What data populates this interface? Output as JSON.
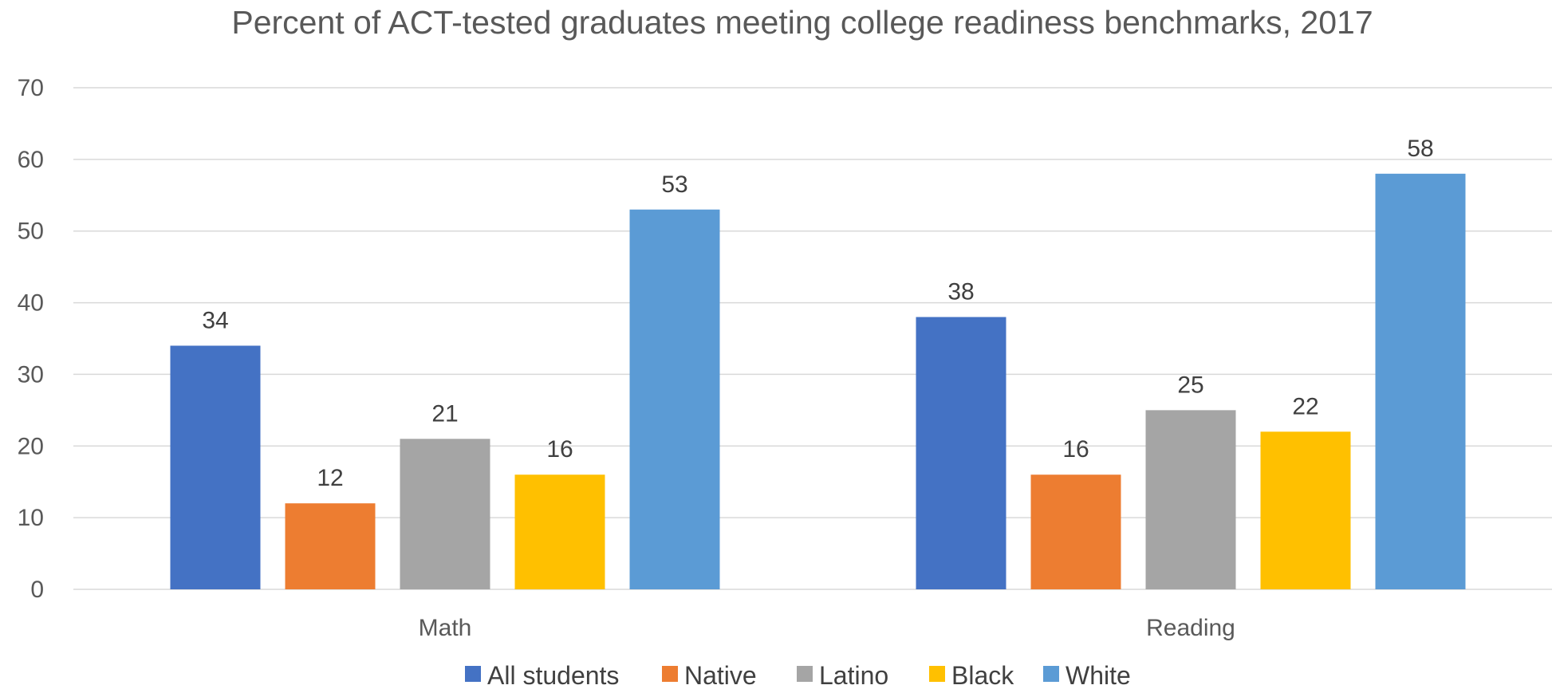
{
  "chart_data": {
    "type": "bar",
    "title": "Percent of ACT-tested graduates meeting college readiness benchmarks, 2017",
    "xlabel": "",
    "ylabel": "",
    "categories": [
      "Math",
      "Reading"
    ],
    "ylim": [
      0,
      70
    ],
    "yticks": [
      0,
      10,
      20,
      30,
      40,
      50,
      60,
      70
    ],
    "grid": true,
    "legend_position": "bottom",
    "series": [
      {
        "name": "All students",
        "color": "#4472c4",
        "values": [
          34,
          38
        ]
      },
      {
        "name": "Native",
        "color": "#ed7d31",
        "values": [
          12,
          16
        ]
      },
      {
        "name": "Latino",
        "color": "#a5a5a5",
        "values": [
          21,
          25
        ]
      },
      {
        "name": "Black",
        "color": "#ffc000",
        "values": [
          16,
          22
        ]
      },
      {
        "name": "White",
        "color": "#5b9bd5",
        "values": [
          53,
          58
        ]
      }
    ]
  }
}
